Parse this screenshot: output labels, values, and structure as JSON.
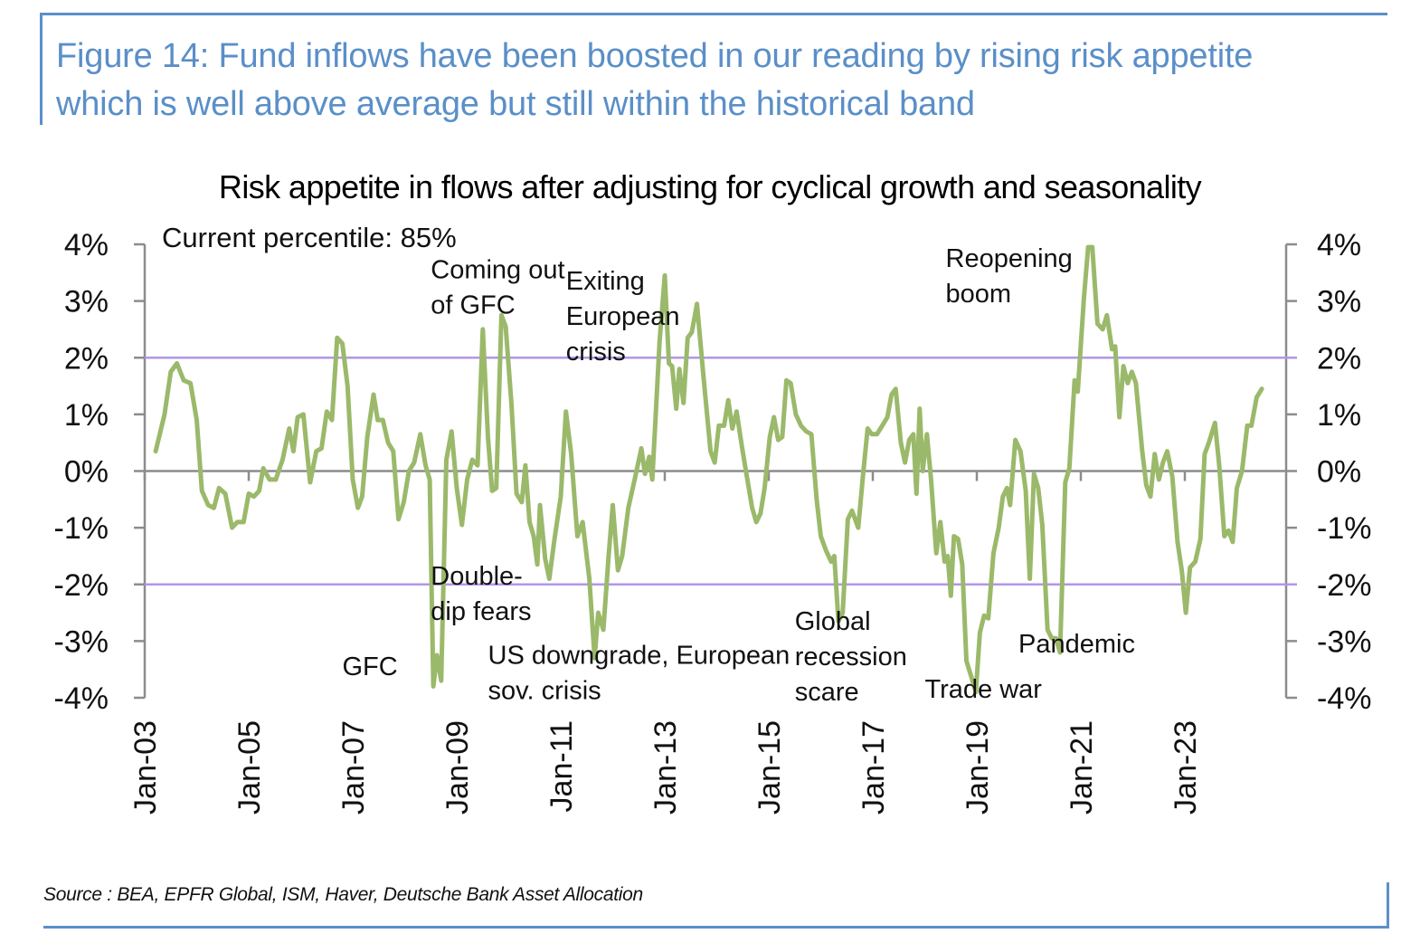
{
  "figure": {
    "title_line1": "Figure 14: Fund inflows have been boosted in our reading by rising risk appetite",
    "title_line2": "which is well above average but still within the historical band",
    "source": "Source : BEA, EPFR Global, ISM, Haver, Deutsche Bank Asset Allocation",
    "accent_color": "#5a8fc8"
  },
  "chart_data": {
    "type": "line",
    "title": "Risk appetite in flows after adjusting for cyclical growth and seasonality",
    "xlabel": "",
    "ylabel": "",
    "ylim": [
      -4,
      4
    ],
    "y_ticks": [
      "4%",
      "3%",
      "2%",
      "1%",
      "0%",
      "-1%",
      "-2%",
      "-3%",
      "-4%"
    ],
    "y_tick_values": [
      4,
      3,
      2,
      1,
      0,
      -1,
      -2,
      -3,
      -4
    ],
    "x_ticks": [
      "Jan-03",
      "Jan-05",
      "Jan-07",
      "Jan-09",
      "Jan-11",
      "Jan-13",
      "Jan-15",
      "Jan-17",
      "Jan-19",
      "Jan-21",
      "Jan-23"
    ],
    "x_tick_years": [
      2003,
      2005,
      2007,
      2009,
      2011,
      2013,
      2015,
      2017,
      2019,
      2021,
      2023
    ],
    "x_range_years": [
      2003.0,
      2025.0
    ],
    "grid": false,
    "dual_axis": true,
    "line_color": "#9bb96a",
    "band_color": "#b197e8",
    "bands": [
      2,
      -2
    ],
    "note": "Current percentile: 85%",
    "annotations": [
      {
        "lines": [
          "Coming out",
          "of GFC"
        ],
        "year": 2008.5,
        "value": 3.4
      },
      {
        "lines": [
          "Exiting",
          "European",
          "crisis"
        ],
        "year": 2011.1,
        "value": 3.2
      },
      {
        "lines": [
          "Reopening",
          "boom"
        ],
        "year": 2018.4,
        "value": 3.6
      },
      {
        "lines": [
          "GFC"
        ],
        "year": 2006.8,
        "value": -3.6
      },
      {
        "lines": [
          "Double-",
          "dip  fears"
        ],
        "year": 2008.5,
        "value": -2.0
      },
      {
        "lines": [
          "US downgrade, European",
          "sov. crisis"
        ],
        "year": 2009.6,
        "value": -3.4
      },
      {
        "lines": [
          "Global",
          "recession",
          "scare"
        ],
        "year": 2015.5,
        "value": -2.8
      },
      {
        "lines": [
          "Trade war"
        ],
        "year": 2018.0,
        "value": -4.0
      },
      {
        "lines": [
          "Pandemic"
        ],
        "year": 2019.8,
        "value": -3.2
      }
    ],
    "series": [
      {
        "name": "Risk appetite",
        "points": [
          [
            2003.21,
            0.35
          ],
          [
            2003.38,
            1.0
          ],
          [
            2003.5,
            1.75
          ],
          [
            2003.62,
            1.9
          ],
          [
            2003.75,
            1.6
          ],
          [
            2003.88,
            1.55
          ],
          [
            2004.0,
            0.9
          ],
          [
            2004.1,
            -0.35
          ],
          [
            2004.22,
            -0.6
          ],
          [
            2004.33,
            -0.65
          ],
          [
            2004.43,
            -0.3
          ],
          [
            2004.55,
            -0.4
          ],
          [
            2004.68,
            -1.0
          ],
          [
            2004.78,
            -0.9
          ],
          [
            2004.9,
            -0.9
          ],
          [
            2005.0,
            -0.4
          ],
          [
            2005.1,
            -0.45
          ],
          [
            2005.2,
            -0.35
          ],
          [
            2005.28,
            0.05
          ],
          [
            2005.4,
            -0.15
          ],
          [
            2005.52,
            -0.15
          ],
          [
            2005.65,
            0.2
          ],
          [
            2005.78,
            0.75
          ],
          [
            2005.86,
            0.35
          ],
          [
            2005.94,
            0.95
          ],
          [
            2006.05,
            1.0
          ],
          [
            2006.18,
            -0.2
          ],
          [
            2006.3,
            0.35
          ],
          [
            2006.4,
            0.4
          ],
          [
            2006.5,
            1.05
          ],
          [
            2006.6,
            0.9
          ],
          [
            2006.7,
            2.35
          ],
          [
            2006.8,
            2.25
          ],
          [
            2006.9,
            1.5
          ],
          [
            2007.0,
            -0.15
          ],
          [
            2007.1,
            -0.65
          ],
          [
            2007.18,
            -0.45
          ],
          [
            2007.28,
            0.6
          ],
          [
            2007.4,
            1.35
          ],
          [
            2007.48,
            0.9
          ],
          [
            2007.58,
            0.9
          ],
          [
            2007.68,
            0.5
          ],
          [
            2007.78,
            0.35
          ],
          [
            2007.88,
            -0.85
          ],
          [
            2007.98,
            -0.55
          ],
          [
            2008.08,
            0.0
          ],
          [
            2008.18,
            0.15
          ],
          [
            2008.3,
            0.65
          ],
          [
            2008.4,
            0.1
          ],
          [
            2008.48,
            -0.15
          ],
          [
            2008.55,
            -3.8
          ],
          [
            2008.62,
            -3.25
          ],
          [
            2008.7,
            -3.7
          ],
          [
            2008.8,
            0.2
          ],
          [
            2008.9,
            0.7
          ],
          [
            2009.0,
            -0.3
          ],
          [
            2009.1,
            -0.95
          ],
          [
            2009.2,
            -0.15
          ],
          [
            2009.3,
            0.2
          ],
          [
            2009.4,
            0.1
          ],
          [
            2009.5,
            2.5
          ],
          [
            2009.6,
            0.6
          ],
          [
            2009.68,
            -0.35
          ],
          [
            2009.76,
            -0.3
          ],
          [
            2009.86,
            2.75
          ],
          [
            2009.94,
            2.55
          ],
          [
            2010.05,
            1.2
          ],
          [
            2010.15,
            -0.4
          ],
          [
            2010.25,
            -0.55
          ],
          [
            2010.32,
            0.1
          ],
          [
            2010.4,
            -0.9
          ],
          [
            2010.48,
            -1.15
          ],
          [
            2010.55,
            -1.65
          ],
          [
            2010.6,
            -0.6
          ],
          [
            2010.7,
            -1.55
          ],
          [
            2010.78,
            -1.9
          ],
          [
            2010.88,
            -1.2
          ],
          [
            2011.0,
            -0.45
          ],
          [
            2011.1,
            1.05
          ],
          [
            2011.2,
            0.3
          ],
          [
            2011.32,
            -1.15
          ],
          [
            2011.42,
            -0.9
          ],
          [
            2011.55,
            -1.9
          ],
          [
            2011.65,
            -3.3
          ],
          [
            2011.72,
            -2.5
          ],
          [
            2011.82,
            -2.8
          ],
          [
            2011.92,
            -1.5
          ],
          [
            2012.0,
            -0.6
          ],
          [
            2012.1,
            -1.75
          ],
          [
            2012.18,
            -1.5
          ],
          [
            2012.3,
            -0.65
          ],
          [
            2012.42,
            -0.15
          ],
          [
            2012.55,
            0.4
          ],
          [
            2012.62,
            -0.05
          ],
          [
            2012.7,
            0.25
          ],
          [
            2012.76,
            -0.15
          ],
          [
            2012.9,
            2.3
          ],
          [
            2013.0,
            3.45
          ],
          [
            2013.08,
            1.9
          ],
          [
            2013.14,
            1.85
          ],
          [
            2013.22,
            1.1
          ],
          [
            2013.28,
            1.8
          ],
          [
            2013.36,
            1.2
          ],
          [
            2013.44,
            2.35
          ],
          [
            2013.52,
            2.45
          ],
          [
            2013.62,
            2.95
          ],
          [
            2013.74,
            1.7
          ],
          [
            2013.88,
            0.35
          ],
          [
            2013.96,
            0.15
          ],
          [
            2014.04,
            0.8
          ],
          [
            2014.14,
            0.8
          ],
          [
            2014.22,
            1.25
          ],
          [
            2014.3,
            0.75
          ],
          [
            2014.38,
            1.05
          ],
          [
            2014.48,
            0.45
          ],
          [
            2014.58,
            -0.1
          ],
          [
            2014.68,
            -0.65
          ],
          [
            2014.76,
            -0.9
          ],
          [
            2014.84,
            -0.75
          ],
          [
            2014.92,
            -0.3
          ],
          [
            2015.02,
            0.6
          ],
          [
            2015.1,
            0.95
          ],
          [
            2015.18,
            0.55
          ],
          [
            2015.26,
            0.6
          ],
          [
            2015.34,
            1.6
          ],
          [
            2015.42,
            1.55
          ],
          [
            2015.52,
            1.0
          ],
          [
            2015.62,
            0.8
          ],
          [
            2015.72,
            0.7
          ],
          [
            2015.82,
            0.65
          ],
          [
            2015.92,
            -0.5
          ],
          [
            2016.0,
            -1.15
          ],
          [
            2016.1,
            -1.4
          ],
          [
            2016.2,
            -1.6
          ],
          [
            2016.26,
            -1.5
          ],
          [
            2016.34,
            -2.65
          ],
          [
            2016.42,
            -2.5
          ],
          [
            2016.52,
            -0.85
          ],
          [
            2016.6,
            -0.7
          ],
          [
            2016.72,
            -1.0
          ],
          [
            2016.82,
            0.0
          ],
          [
            2016.9,
            0.75
          ],
          [
            2016.98,
            0.65
          ],
          [
            2017.08,
            0.65
          ],
          [
            2017.18,
            0.8
          ],
          [
            2017.28,
            0.95
          ],
          [
            2017.36,
            1.35
          ],
          [
            2017.44,
            1.45
          ],
          [
            2017.54,
            0.5
          ],
          [
            2017.62,
            0.15
          ],
          [
            2017.7,
            0.55
          ],
          [
            2017.78,
            0.65
          ],
          [
            2017.84,
            -0.4
          ],
          [
            2017.9,
            1.1
          ],
          [
            2017.96,
            0.0
          ],
          [
            2018.04,
            0.65
          ],
          [
            2018.12,
            -0.15
          ],
          [
            2018.22,
            -1.45
          ],
          [
            2018.3,
            -0.9
          ],
          [
            2018.38,
            -1.6
          ],
          [
            2018.44,
            -1.5
          ],
          [
            2018.5,
            -2.2
          ],
          [
            2018.56,
            -1.15
          ],
          [
            2018.64,
            -1.2
          ],
          [
            2018.72,
            -1.65
          ],
          [
            2018.8,
            -3.35
          ],
          [
            2018.9,
            -3.65
          ],
          [
            2018.98,
            -3.9
          ],
          [
            2019.06,
            -2.85
          ],
          [
            2019.14,
            -2.55
          ],
          [
            2019.22,
            -2.6
          ],
          [
            2019.32,
            -1.45
          ],
          [
            2019.42,
            -1.0
          ],
          [
            2019.5,
            -0.45
          ],
          [
            2019.58,
            -0.3
          ],
          [
            2019.64,
            -0.6
          ],
          [
            2019.74,
            0.55
          ],
          [
            2019.84,
            0.35
          ],
          [
            2019.94,
            -0.35
          ],
          [
            2020.02,
            -1.9
          ],
          [
            2020.1,
            -0.05
          ],
          [
            2020.18,
            -0.3
          ],
          [
            2020.26,
            -0.95
          ],
          [
            2020.36,
            -2.8
          ],
          [
            2020.44,
            -2.95
          ],
          [
            2020.52,
            -2.95
          ],
          [
            2020.6,
            -3.2
          ],
          [
            2020.7,
            -0.2
          ],
          [
            2020.78,
            0.05
          ],
          [
            2020.88,
            1.6
          ],
          [
            2020.94,
            1.4
          ],
          [
            2021.06,
            3.05
          ],
          [
            2021.14,
            3.95
          ],
          [
            2021.22,
            3.95
          ],
          [
            2021.32,
            2.6
          ],
          [
            2021.42,
            2.5
          ],
          [
            2021.5,
            2.75
          ],
          [
            2021.6,
            2.15
          ],
          [
            2021.66,
            2.2
          ],
          [
            2021.74,
            0.95
          ],
          [
            2021.82,
            1.85
          ],
          [
            2021.9,
            1.55
          ],
          [
            2021.98,
            1.75
          ],
          [
            2022.06,
            1.55
          ],
          [
            2022.18,
            0.35
          ],
          [
            2022.26,
            -0.25
          ],
          [
            2022.34,
            -0.45
          ],
          [
            2022.42,
            0.3
          ],
          [
            2022.5,
            -0.15
          ],
          [
            2022.58,
            0.15
          ],
          [
            2022.66,
            0.35
          ],
          [
            2022.76,
            -0.1
          ],
          [
            2022.86,
            -1.25
          ],
          [
            2022.94,
            -1.75
          ],
          [
            2023.02,
            -2.5
          ],
          [
            2023.1,
            -1.7
          ],
          [
            2023.2,
            -1.6
          ],
          [
            2023.3,
            -1.2
          ],
          [
            2023.38,
            0.3
          ],
          [
            2023.46,
            0.5
          ],
          [
            2023.58,
            0.85
          ],
          [
            2023.66,
            0.1
          ],
          [
            2023.76,
            -1.15
          ],
          [
            2023.84,
            -1.05
          ],
          [
            2023.92,
            -1.25
          ],
          [
            2024.0,
            -0.3
          ],
          [
            2024.1,
            0.0
          ],
          [
            2024.2,
            0.8
          ],
          [
            2024.28,
            0.8
          ],
          [
            2024.38,
            1.3
          ],
          [
            2024.48,
            1.45
          ]
        ]
      }
    ]
  }
}
